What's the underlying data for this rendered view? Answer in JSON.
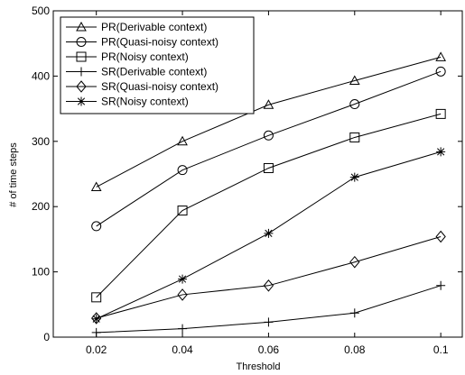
{
  "chart_data": {
    "type": "line",
    "x": [
      0.02,
      0.04,
      0.06,
      0.08,
      0.1
    ],
    "x_tick_labels": [
      "0.02",
      "0.04",
      "0.06",
      "0.08",
      "0.1"
    ],
    "y_ticks": [
      0,
      100,
      200,
      300,
      400,
      500
    ],
    "xlabel": "Threshold",
    "ylabel": "# of time steps",
    "xlim": [
      0.01,
      0.105
    ],
    "ylim": [
      0,
      500
    ],
    "grid": false,
    "legend_position": "top-left",
    "series": [
      {
        "name": "PR(Derivable context)",
        "marker": "triangle",
        "values": [
          230,
          300,
          356,
          393,
          429
        ]
      },
      {
        "name": "PR(Quasi-noisy context)",
        "marker": "circle",
        "values": [
          170,
          256,
          309,
          357,
          407
        ]
      },
      {
        "name": "PR(Noisy context)",
        "marker": "square",
        "values": [
          61,
          194,
          259,
          306,
          342
        ]
      },
      {
        "name": "SR(Derivable context)",
        "marker": "plus",
        "values": [
          7,
          13,
          23,
          37,
          79
        ]
      },
      {
        "name": "SR(Quasi-noisy context)",
        "marker": "diamond",
        "values": [
          29,
          65,
          79,
          115,
          154
        ]
      },
      {
        "name": "SR(Noisy context)",
        "marker": "asterisk",
        "values": [
          28,
          89,
          159,
          245,
          284
        ]
      }
    ]
  }
}
